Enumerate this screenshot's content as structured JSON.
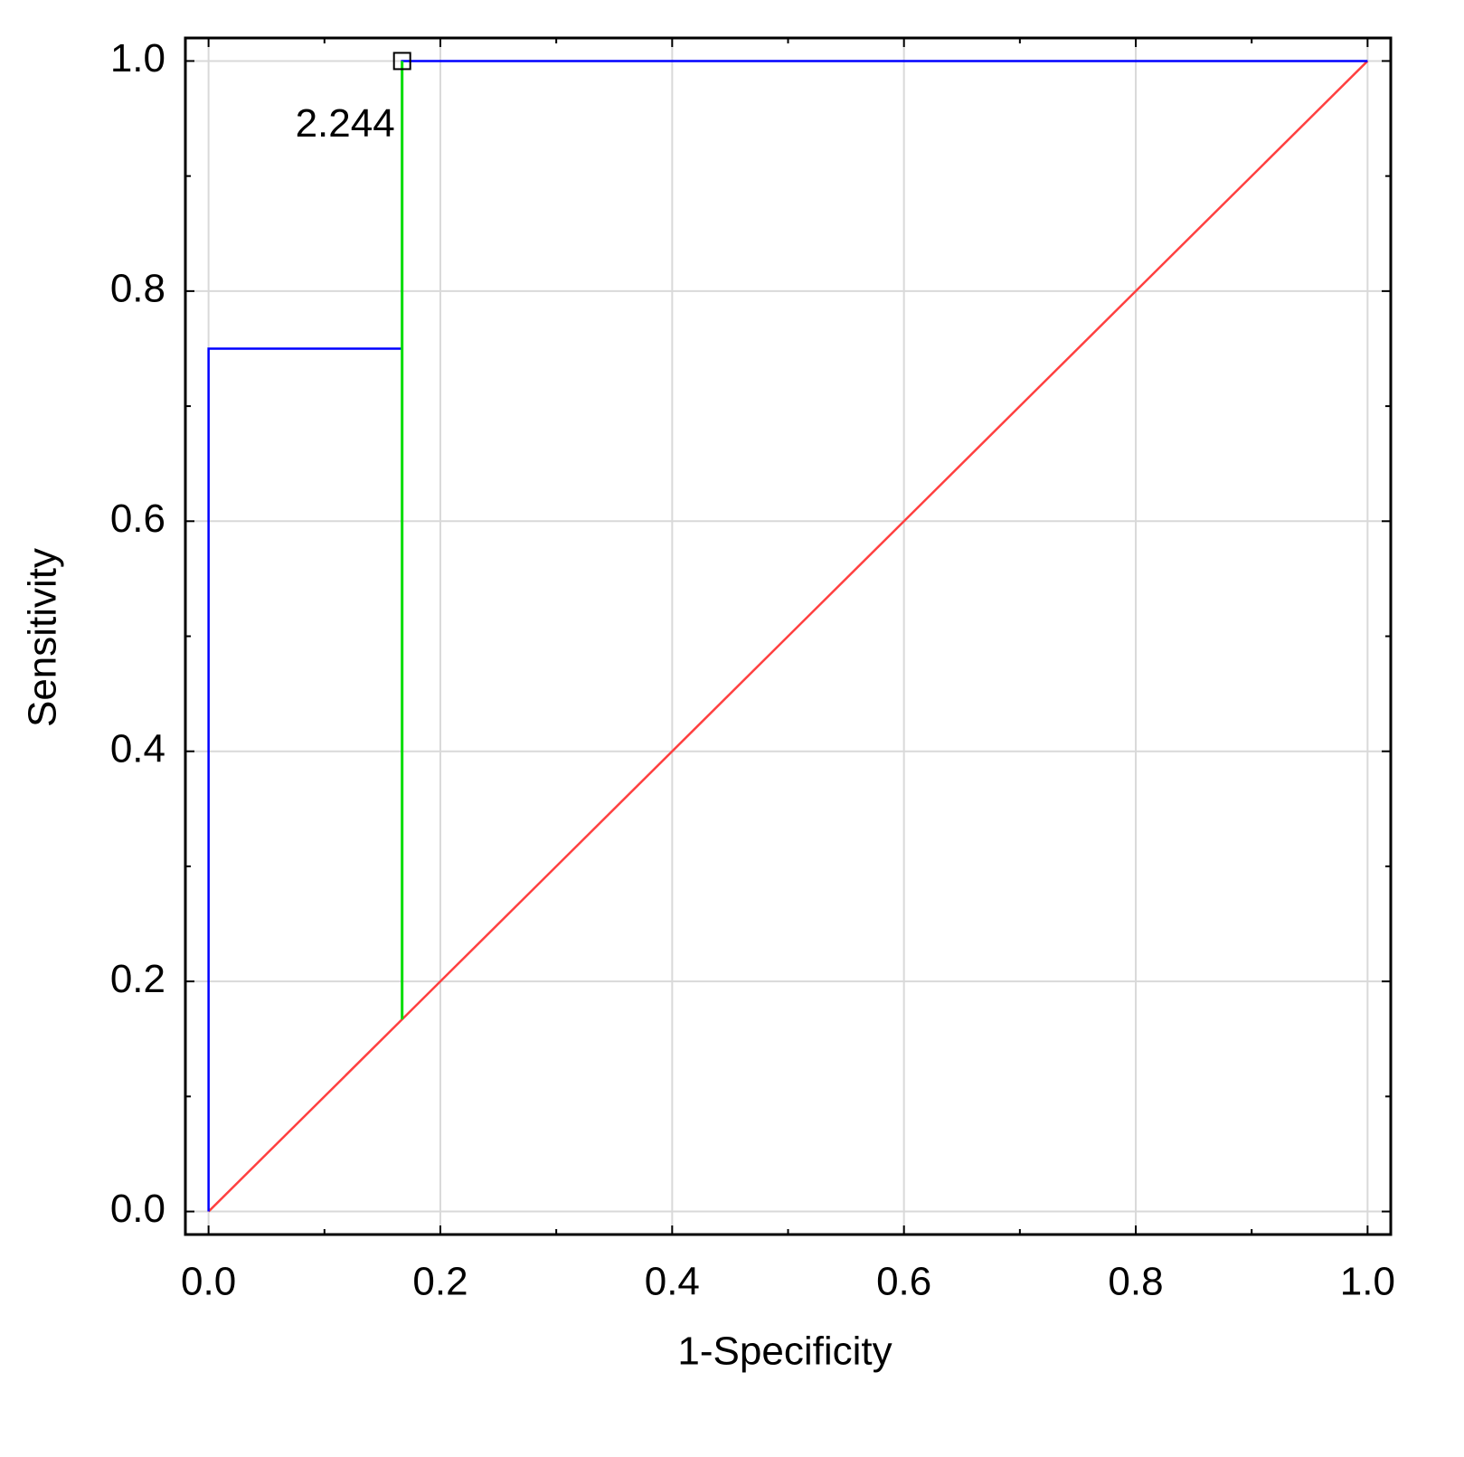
{
  "chart_data": {
    "type": "line",
    "xlabel": "1-Specificity",
    "ylabel": "Sensitivity",
    "xlim": [
      -0.02,
      1.02
    ],
    "ylim": [
      -0.02,
      1.02
    ],
    "xticks": [
      {
        "value": 0,
        "label": "0.0"
      },
      0.2,
      0.4,
      0.6,
      0.8,
      {
        "value": 1,
        "label": "1.0"
      }
    ],
    "yticks": [
      {
        "value": 0,
        "label": "0.0"
      },
      0.2,
      0.4,
      0.6,
      0.8,
      {
        "value": 1,
        "label": "1.0"
      }
    ],
    "minor_ticks": [
      0.1,
      0.3,
      0.5,
      0.7,
      0.9
    ],
    "grid": true,
    "series": [
      {
        "color": "#ff4040",
        "x": [
          0,
          1
        ],
        "values": [
          0,
          1
        ]
      },
      {
        "color": "#0000ff",
        "x": [
          0,
          0,
          0.167,
          0.167,
          1
        ],
        "values": [
          0,
          0.75,
          0.75,
          1,
          1
        ]
      },
      {
        "color": "#00dd00",
        "x": [
          0.167,
          0.167
        ],
        "values": [
          0.167,
          1
        ]
      }
    ],
    "annotation": {
      "text": "2.244",
      "x": 0.167,
      "y": 1
    }
  }
}
